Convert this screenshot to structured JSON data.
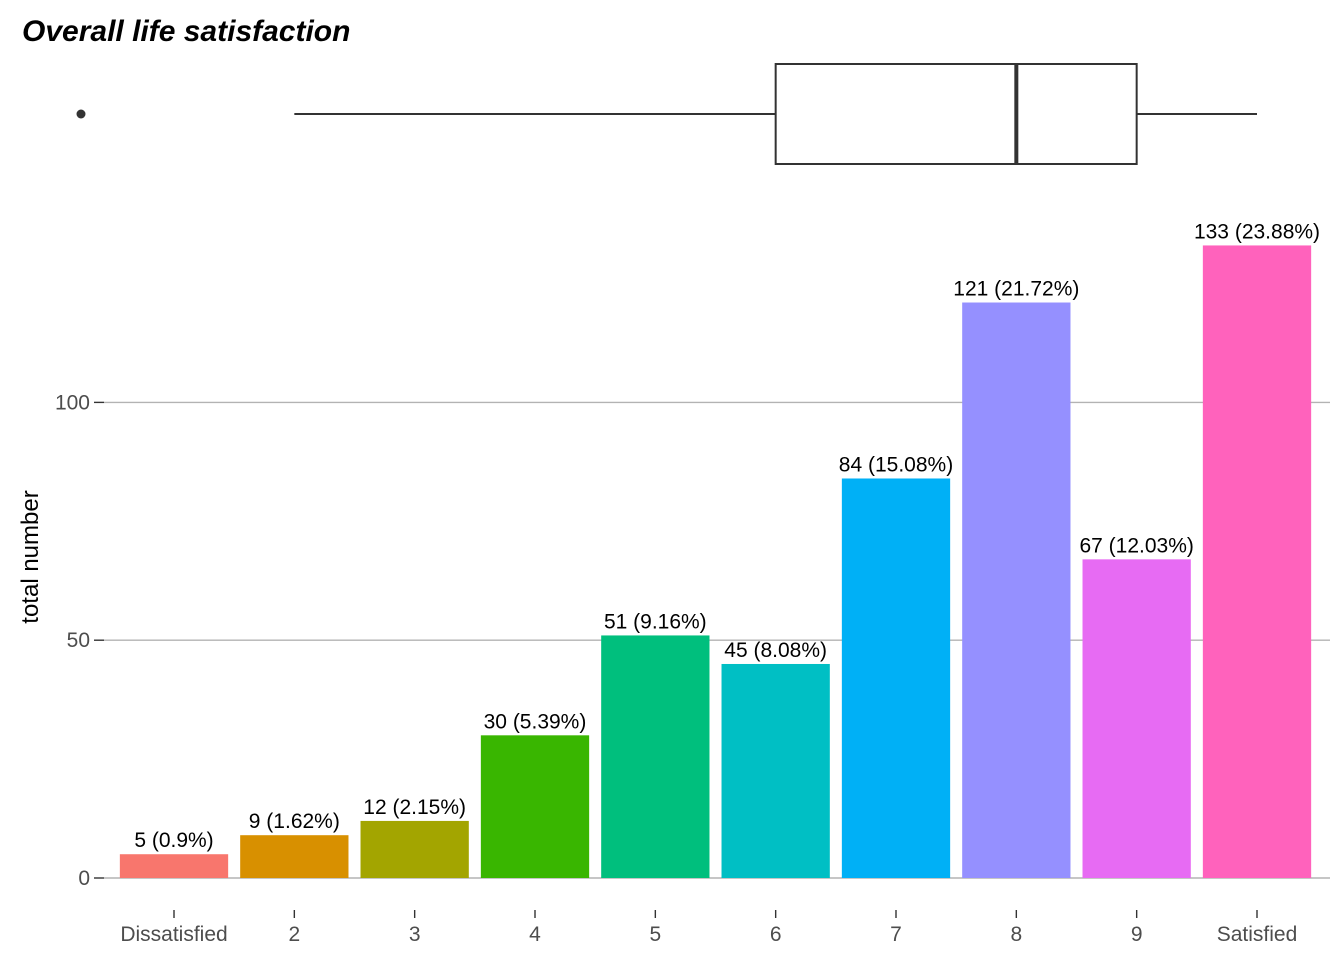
{
  "chart_data": {
    "type": "bar",
    "title": "Overall life satisfaction",
    "xlabel": "",
    "ylabel": "total number",
    "categories": [
      "Dissatisfied",
      "2",
      "3",
      "4",
      "5",
      "6",
      "7",
      "8",
      "9",
      "Satisfied"
    ],
    "values": [
      5,
      9,
      12,
      30,
      51,
      45,
      84,
      121,
      67,
      133
    ],
    "data_labels": [
      "5 (0.9%)",
      "9 (1.62%)",
      "12 (2.15%)",
      "30 (5.39%)",
      "51 (9.16%)",
      "45 (8.08%)",
      "84 (15.08%)",
      "121 (21.72%)",
      "67 (12.03%)",
      "133 (23.88%)"
    ],
    "colors": [
      "#F8766D",
      "#D89000",
      "#A3A500",
      "#39B600",
      "#00BF7D",
      "#00BFC4",
      "#00B0F6",
      "#9590FF",
      "#E76BF3",
      "#FF62BC"
    ],
    "yticks": [
      0,
      50,
      100
    ],
    "ylim": [
      0,
      139.4
    ],
    "grid": true,
    "legend": "none",
    "boxplot": {
      "min": 2,
      "q1": 6,
      "median": 8,
      "q3": 9,
      "max": 10,
      "outliers": [
        1
      ]
    }
  }
}
